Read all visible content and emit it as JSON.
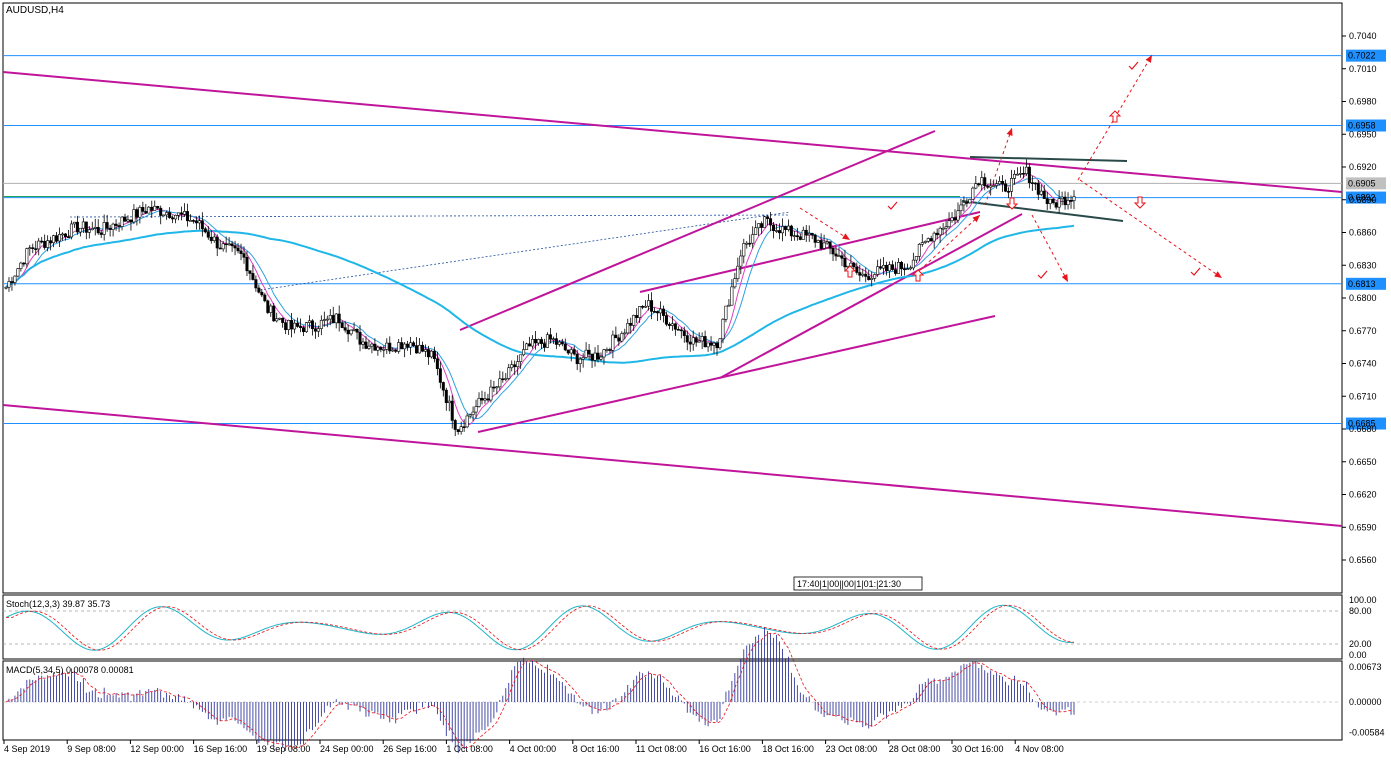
{
  "chart_data": {
    "type": "candlestick",
    "symbol_label": "AUDUSD,H4",
    "price_axis": {
      "ticks": [
        "0.7040",
        "0.7010",
        "0.6980",
        "0.6950",
        "0.6920",
        "0.6890",
        "0.6860",
        "0.6830",
        "0.6800",
        "0.6770",
        "0.6740",
        "0.6710",
        "0.6680",
        "0.6650",
        "0.6620",
        "0.6590",
        "0.6560"
      ],
      "min": 0.654,
      "max": 0.706
    },
    "time_axis": {
      "labels": [
        "4 Sep 2019",
        "9 Sep 08:00",
        "12 Sep 00:00",
        "16 Sep 16:00",
        "19 Sep 08:00",
        "24 Sep 00:00",
        "26 Sep 16:00",
        "1 Oct 08:00",
        "4 Oct 00:00",
        "8 Oct 16:00",
        "11 Oct 08:00",
        "16 Oct 16:00",
        "18 Oct 16:00",
        "23 Oct 08:00",
        "28 Oct 08:00",
        "30 Oct 16:00",
        "4 Nov 08:00"
      ]
    },
    "levels": [
      {
        "price": 0.7022,
        "label": "0.7022"
      },
      {
        "price": 0.6958,
        "label": "0.6958"
      },
      {
        "price": 0.6905,
        "label": "0.6905"
      },
      {
        "price": 0.6892,
        "label": "0.6892"
      },
      {
        "price": 0.6813,
        "label": "0.6813"
      },
      {
        "price": 0.6685,
        "label": "0.6685"
      }
    ],
    "close_path": [
      [
        "4 Sep",
        0.681
      ],
      [
        "5 Sep",
        0.6845
      ],
      [
        "6 Sep",
        0.6855
      ],
      [
        "9 Sep",
        0.6865
      ],
      [
        "10 Sep",
        0.6862
      ],
      [
        "11 Sep",
        0.6872
      ],
      [
        "12 Sep",
        0.6882
      ],
      [
        "13 Sep",
        0.6878
      ],
      [
        "16 Sep",
        0.687
      ],
      [
        "17 Sep",
        0.6848
      ],
      [
        "18 Sep",
        0.6838
      ],
      [
        "19 Sep",
        0.679
      ],
      [
        "20 Sep",
        0.6772
      ],
      [
        "23 Sep",
        0.6775
      ],
      [
        "24 Sep",
        0.6782
      ],
      [
        "25 Sep",
        0.676
      ],
      [
        "26 Sep",
        0.6755
      ],
      [
        "27 Sep",
        0.676
      ],
      [
        "30 Sep",
        0.6745
      ],
      [
        "1 Oct",
        0.668
      ],
      [
        "2 Oct",
        0.6705
      ],
      [
        "3 Oct",
        0.6725
      ],
      [
        "4 Oct",
        0.6755
      ],
      [
        "7 Oct",
        0.6762
      ],
      [
        "8 Oct",
        0.6745
      ],
      [
        "9 Oct",
        0.6748
      ],
      [
        "10 Oct",
        0.677
      ],
      [
        "11 Oct",
        0.6795
      ],
      [
        "14 Oct",
        0.6778
      ],
      [
        "15 Oct",
        0.676
      ],
      [
        "16 Oct",
        0.676
      ],
      [
        "17 Oct",
        0.6845
      ],
      [
        "18 Oct",
        0.687
      ],
      [
        "21 Oct",
        0.686
      ],
      [
        "22 Oct",
        0.6855
      ],
      [
        "23 Oct",
        0.684
      ],
      [
        "24 Oct",
        0.682
      ],
      [
        "25 Oct",
        0.6825
      ],
      [
        "28 Oct",
        0.683
      ],
      [
        "29 Oct",
        0.6858
      ],
      [
        "30 Oct",
        0.6875
      ],
      [
        "31 Oct",
        0.691
      ],
      [
        "1 Nov",
        0.69
      ],
      [
        "4 Nov",
        0.6915
      ],
      [
        "5 Nov",
        0.6885
      ],
      [
        "6 Nov",
        0.6895
      ]
    ],
    "stoch": {
      "label": "Stoch(12,3,3) 39.87 35.73",
      "ticks": [
        "100.00",
        "80.00",
        "20.00",
        "0.00"
      ]
    },
    "macd": {
      "label": "MACD(5,34,5) 0.00078 0.00081",
      "ticks": [
        "0.00673",
        "0.00000",
        "-0.00584"
      ]
    },
    "crosshair_label": "17:40|1|00||00|1|01:|21:30",
    "colors": {
      "level": "#1e90ff",
      "level_label_bg": "#1e90ff",
      "channel": "#c0149b",
      "ma_long": "#1fb6e8",
      "ma_fast": "#e040c0",
      "candle": "#000000",
      "arrow": "#e8141b",
      "macd_bar": "#1a2090",
      "signal": "#e8141b"
    }
  }
}
